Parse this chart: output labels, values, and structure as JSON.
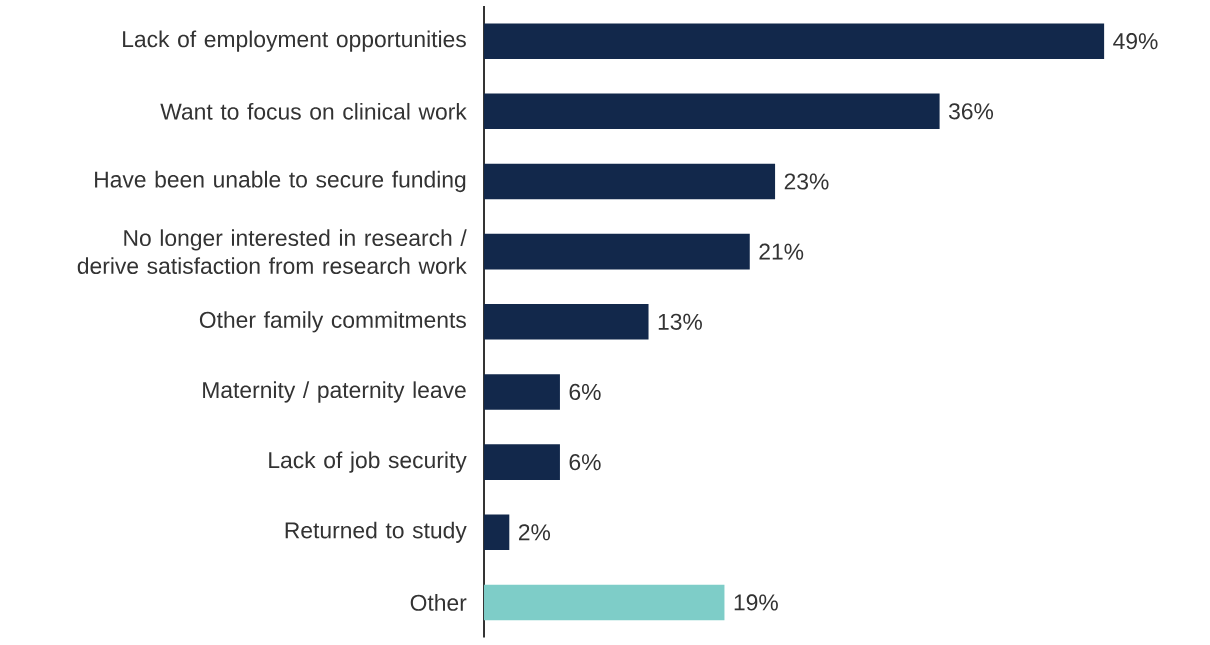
{
  "chart_data": {
    "type": "bar",
    "orientation": "horizontal",
    "categories": [
      "Lack of employment opportunities",
      "Want to focus on clinical work",
      "Have been unable to secure funding",
      "No longer interested in research / derive satisfaction from research work",
      "Other family commitments",
      "Maternity / paternity leave",
      "Lack of job security",
      "Returned to study",
      "Other"
    ],
    "values": [
      49,
      36,
      23,
      21,
      13,
      6,
      6,
      2,
      19
    ],
    "value_labels": [
      "49%",
      "36%",
      "23%",
      "21%",
      "13%",
      "6%",
      "6%",
      "2%",
      "19%"
    ],
    "colors": [
      "#12284b",
      "#12284b",
      "#12284b",
      "#12284b",
      "#12284b",
      "#12284b",
      "#12284b",
      "#12284b",
      "#7ecdc8"
    ]
  }
}
